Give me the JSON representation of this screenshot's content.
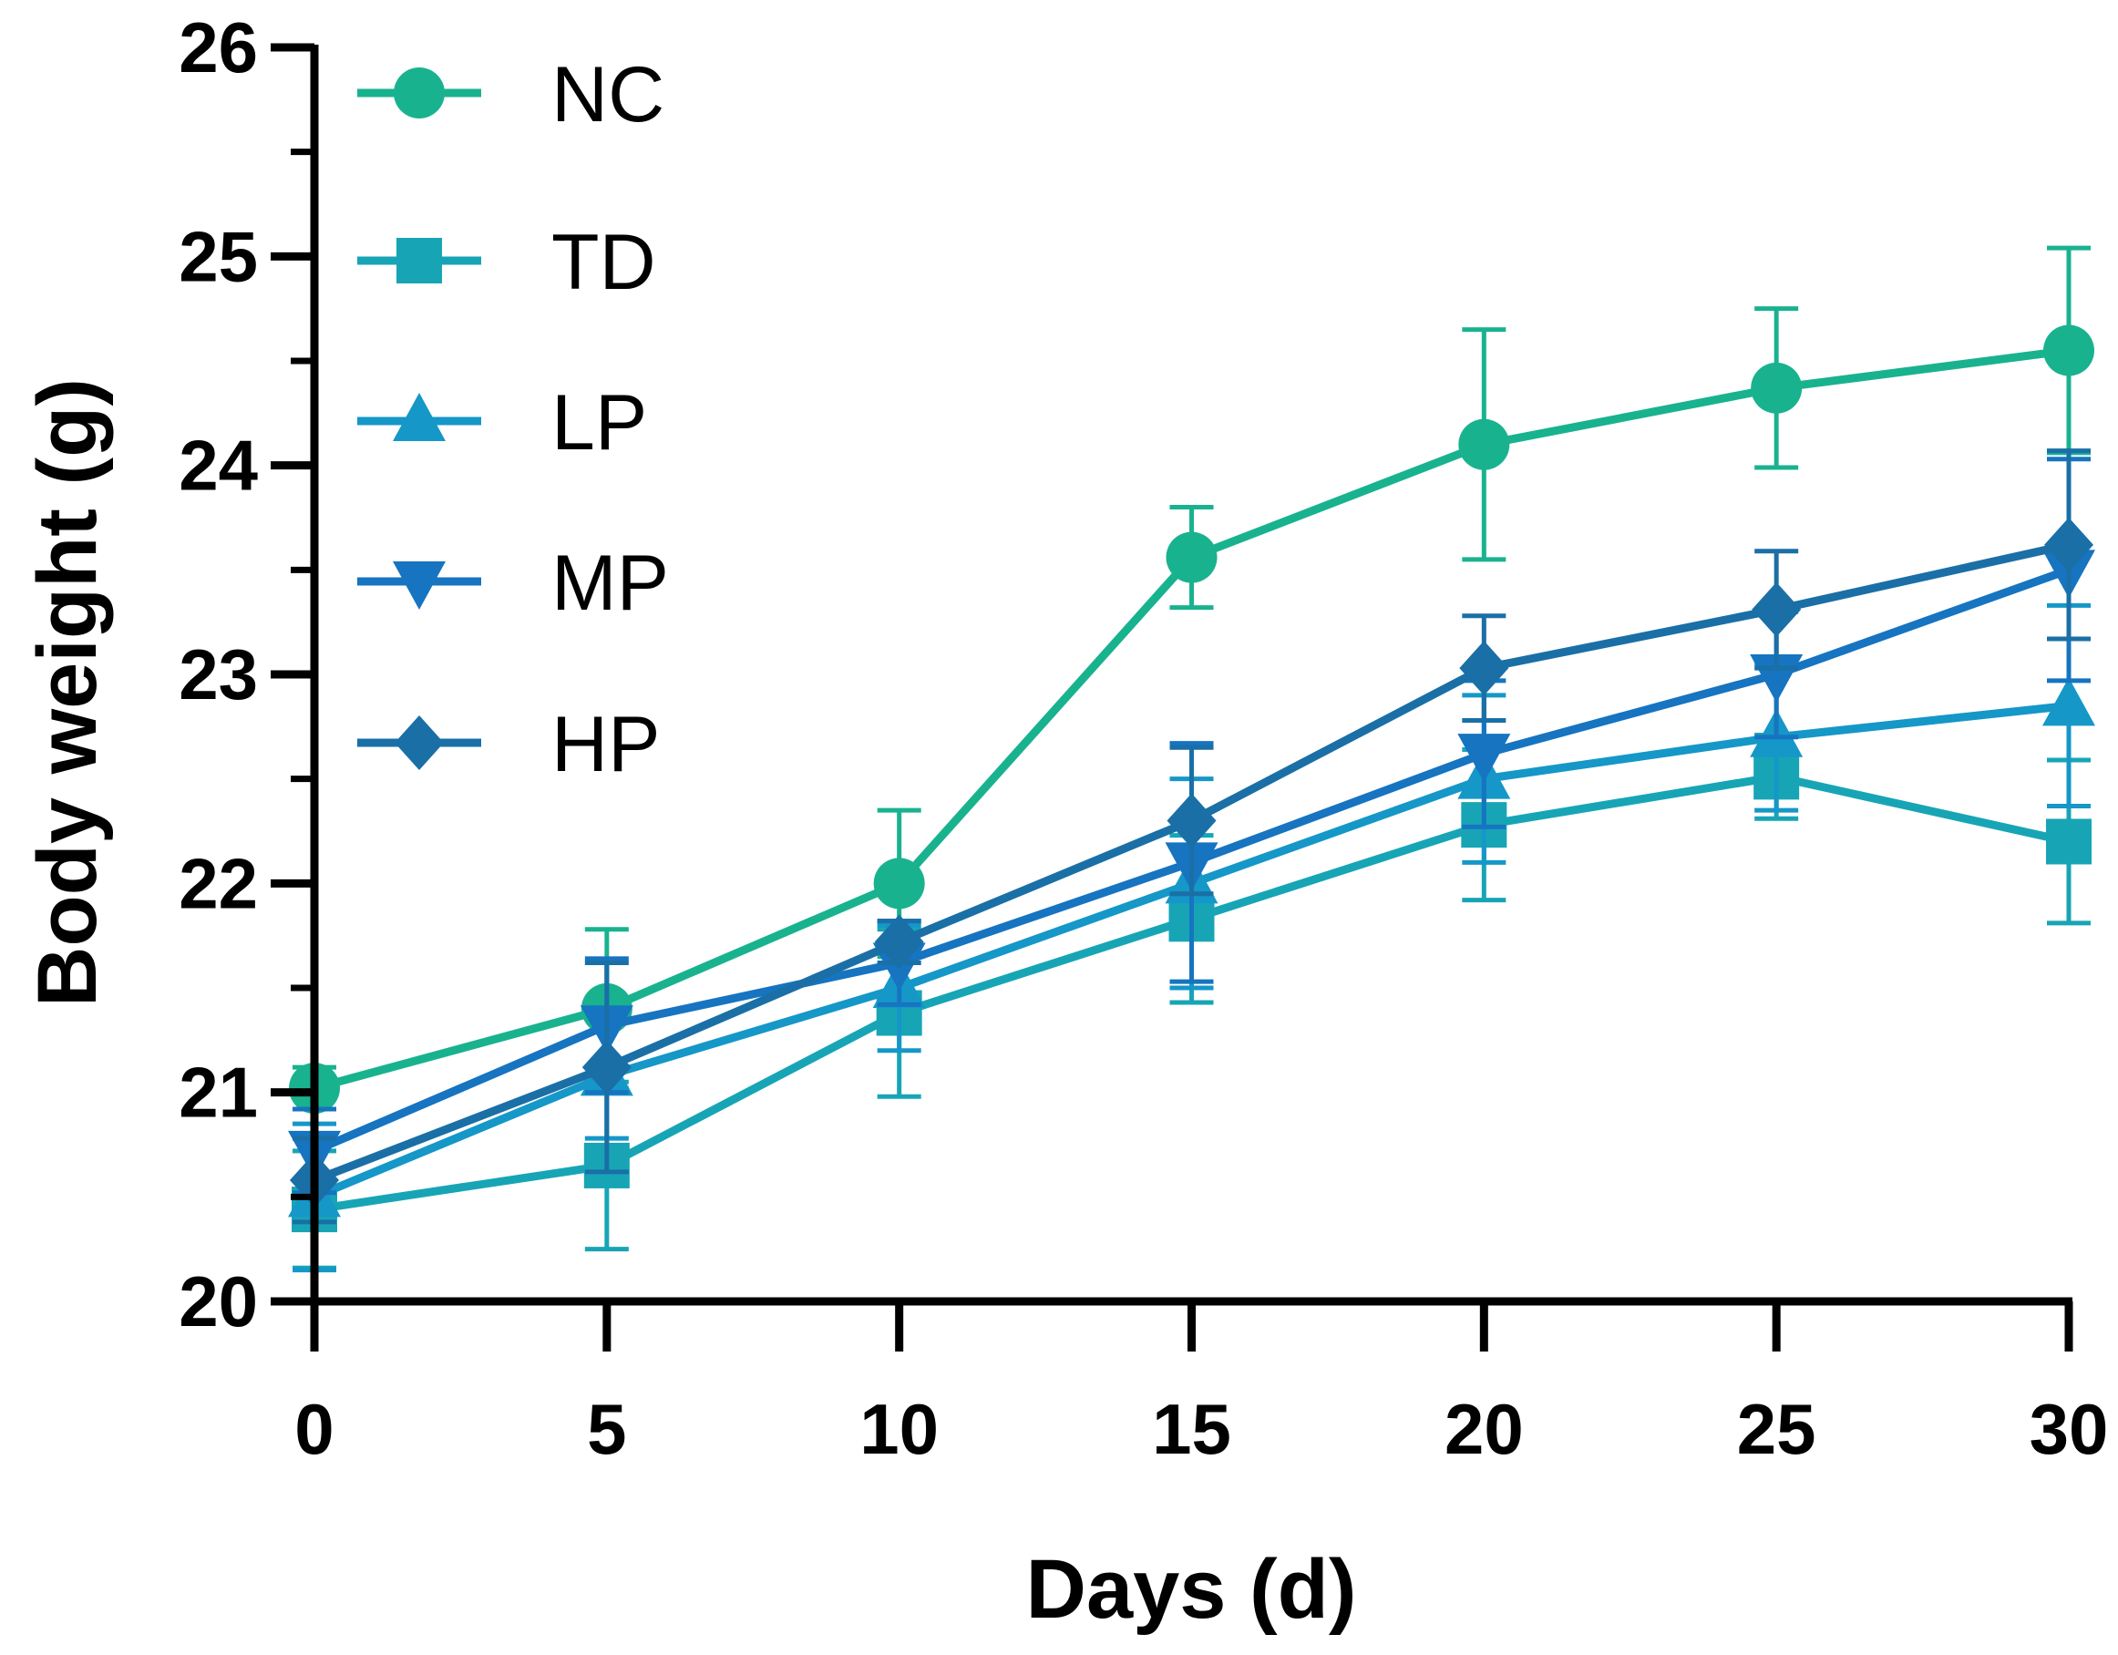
{
  "chart_data": {
    "type": "line",
    "title": "",
    "xlabel": "Days (d)",
    "ylabel": "Body weight (g)",
    "xlim": [
      0,
      30
    ],
    "ylim": [
      20,
      26
    ],
    "xticks": [
      "0",
      "5",
      "10",
      "15",
      "20",
      "25",
      "30"
    ],
    "yticks": [
      "20",
      "21",
      "22",
      "23",
      "24",
      "25",
      "26"
    ],
    "x": [
      0,
      5,
      10,
      15,
      20,
      25,
      30
    ],
    "legend_position": "top-left",
    "grid": false,
    "series": [
      {
        "name": "NC",
        "marker": "circle",
        "color": "#19B28F",
        "values": [
          21.02,
          21.4,
          22.0,
          23.56,
          24.1,
          24.37,
          24.55
        ],
        "errors": [
          0.1,
          0.38,
          0.35,
          0.24,
          0.55,
          0.38,
          0.49
        ]
      },
      {
        "name": "TD",
        "marker": "square",
        "color": "#17A5B6",
        "values": [
          20.44,
          20.65,
          21.38,
          21.83,
          22.28,
          22.51,
          22.2
        ],
        "errors": [
          0.28,
          0.4,
          0.4,
          0.4,
          0.36,
          0.2,
          0.39
        ]
      },
      {
        "name": "LP",
        "marker": "triangle-up",
        "color": "#1597C8",
        "values": [
          20.5,
          21.08,
          21.5,
          22.0,
          22.5,
          22.7,
          22.85
        ],
        "errors": [
          0.35,
          0.3,
          0.3,
          0.5,
          0.4,
          0.35,
          0.48
        ]
      },
      {
        "name": "MP",
        "marker": "triangle-down",
        "color": "#1674C0",
        "values": [
          20.72,
          21.32,
          21.62,
          22.1,
          22.62,
          23.0,
          23.5
        ],
        "errors": [
          0.2,
          0.32,
          0.2,
          0.57,
          0.35,
          0.3,
          0.53
        ]
      },
      {
        "name": "HP",
        "marker": "diamond",
        "color": "#1A6FA6",
        "values": [
          20.58,
          21.12,
          21.72,
          22.3,
          23.03,
          23.31,
          23.62
        ],
        "errors": [
          0.2,
          0.5,
          0.1,
          0.35,
          0.25,
          0.28,
          0.45
        ]
      }
    ]
  }
}
